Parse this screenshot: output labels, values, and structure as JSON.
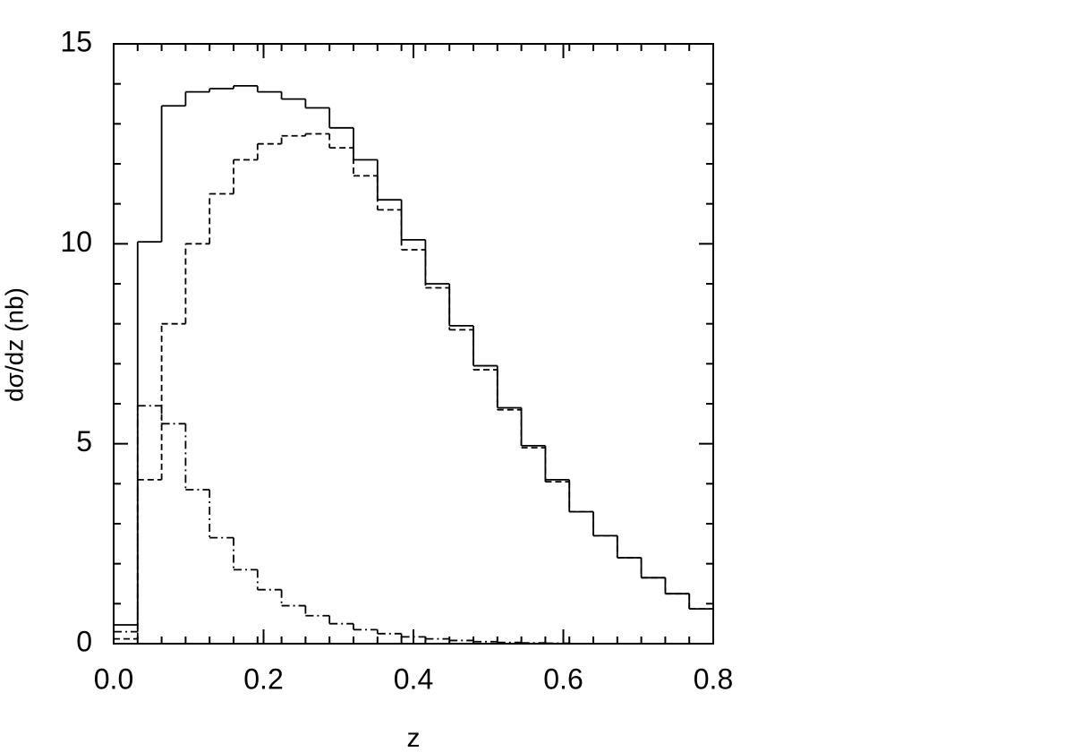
{
  "chart_data": {
    "type": "histogram",
    "xlabel": "z",
    "ylabel": "dσ/dz (nb)",
    "bins": [
      0,
      0.032,
      0.064,
      0.096,
      0.128,
      0.16,
      0.192,
      0.224,
      0.256,
      0.288,
      0.32,
      0.352,
      0.384,
      0.416,
      0.448,
      0.48,
      0.512,
      0.544,
      0.576,
      0.608,
      0.64,
      0.672,
      0.704,
      0.736,
      0.768,
      0.8
    ],
    "series": [
      {
        "color": "#000000",
        "dash": "solid",
        "values": [
          0.47,
          10.05,
          13.45,
          13.8,
          13.88,
          13.95,
          13.8,
          13.62,
          13.4,
          12.9,
          12.1,
          11.1,
          10.1,
          9.0,
          7.95,
          6.95,
          5.9,
          4.95,
          4.1,
          3.3,
          2.7,
          2.15,
          1.65,
          1.25,
          0.87
        ]
      },
      {
        "color": "#000000",
        "dash": "dashed",
        "values": [
          0.12,
          4.1,
          8.0,
          10.0,
          11.25,
          12.1,
          12.5,
          12.7,
          12.75,
          12.4,
          11.7,
          10.85,
          9.85,
          8.9,
          7.85,
          6.85,
          5.85,
          4.9,
          4.05,
          3.3,
          2.7,
          2.15,
          1.65,
          1.25,
          0.87
        ]
      },
      {
        "color": "#000000",
        "dash": "dashdot",
        "values": [
          0.3,
          5.95,
          5.5,
          3.85,
          2.65,
          1.85,
          1.35,
          0.95,
          0.7,
          0.5,
          0.35,
          0.25,
          0.17,
          0.12,
          0.08,
          0.05,
          0.03,
          0.02,
          0.01,
          0.0,
          null,
          null,
          null,
          null,
          null
        ]
      }
    ],
    "xlim": [
      0,
      0.8
    ],
    "xticks": [
      {
        "value": 0,
        "label": "0.0"
      },
      {
        "value": 0.2,
        "label": "0.2"
      },
      {
        "value": 0.4,
        "label": "0.4"
      },
      {
        "value": 0.6,
        "label": "0.6"
      },
      {
        "value": 0.8,
        "label": "0.8"
      }
    ],
    "ylim": [
      0,
      15
    ],
    "yticks": [
      0,
      5,
      10,
      15
    ]
  }
}
